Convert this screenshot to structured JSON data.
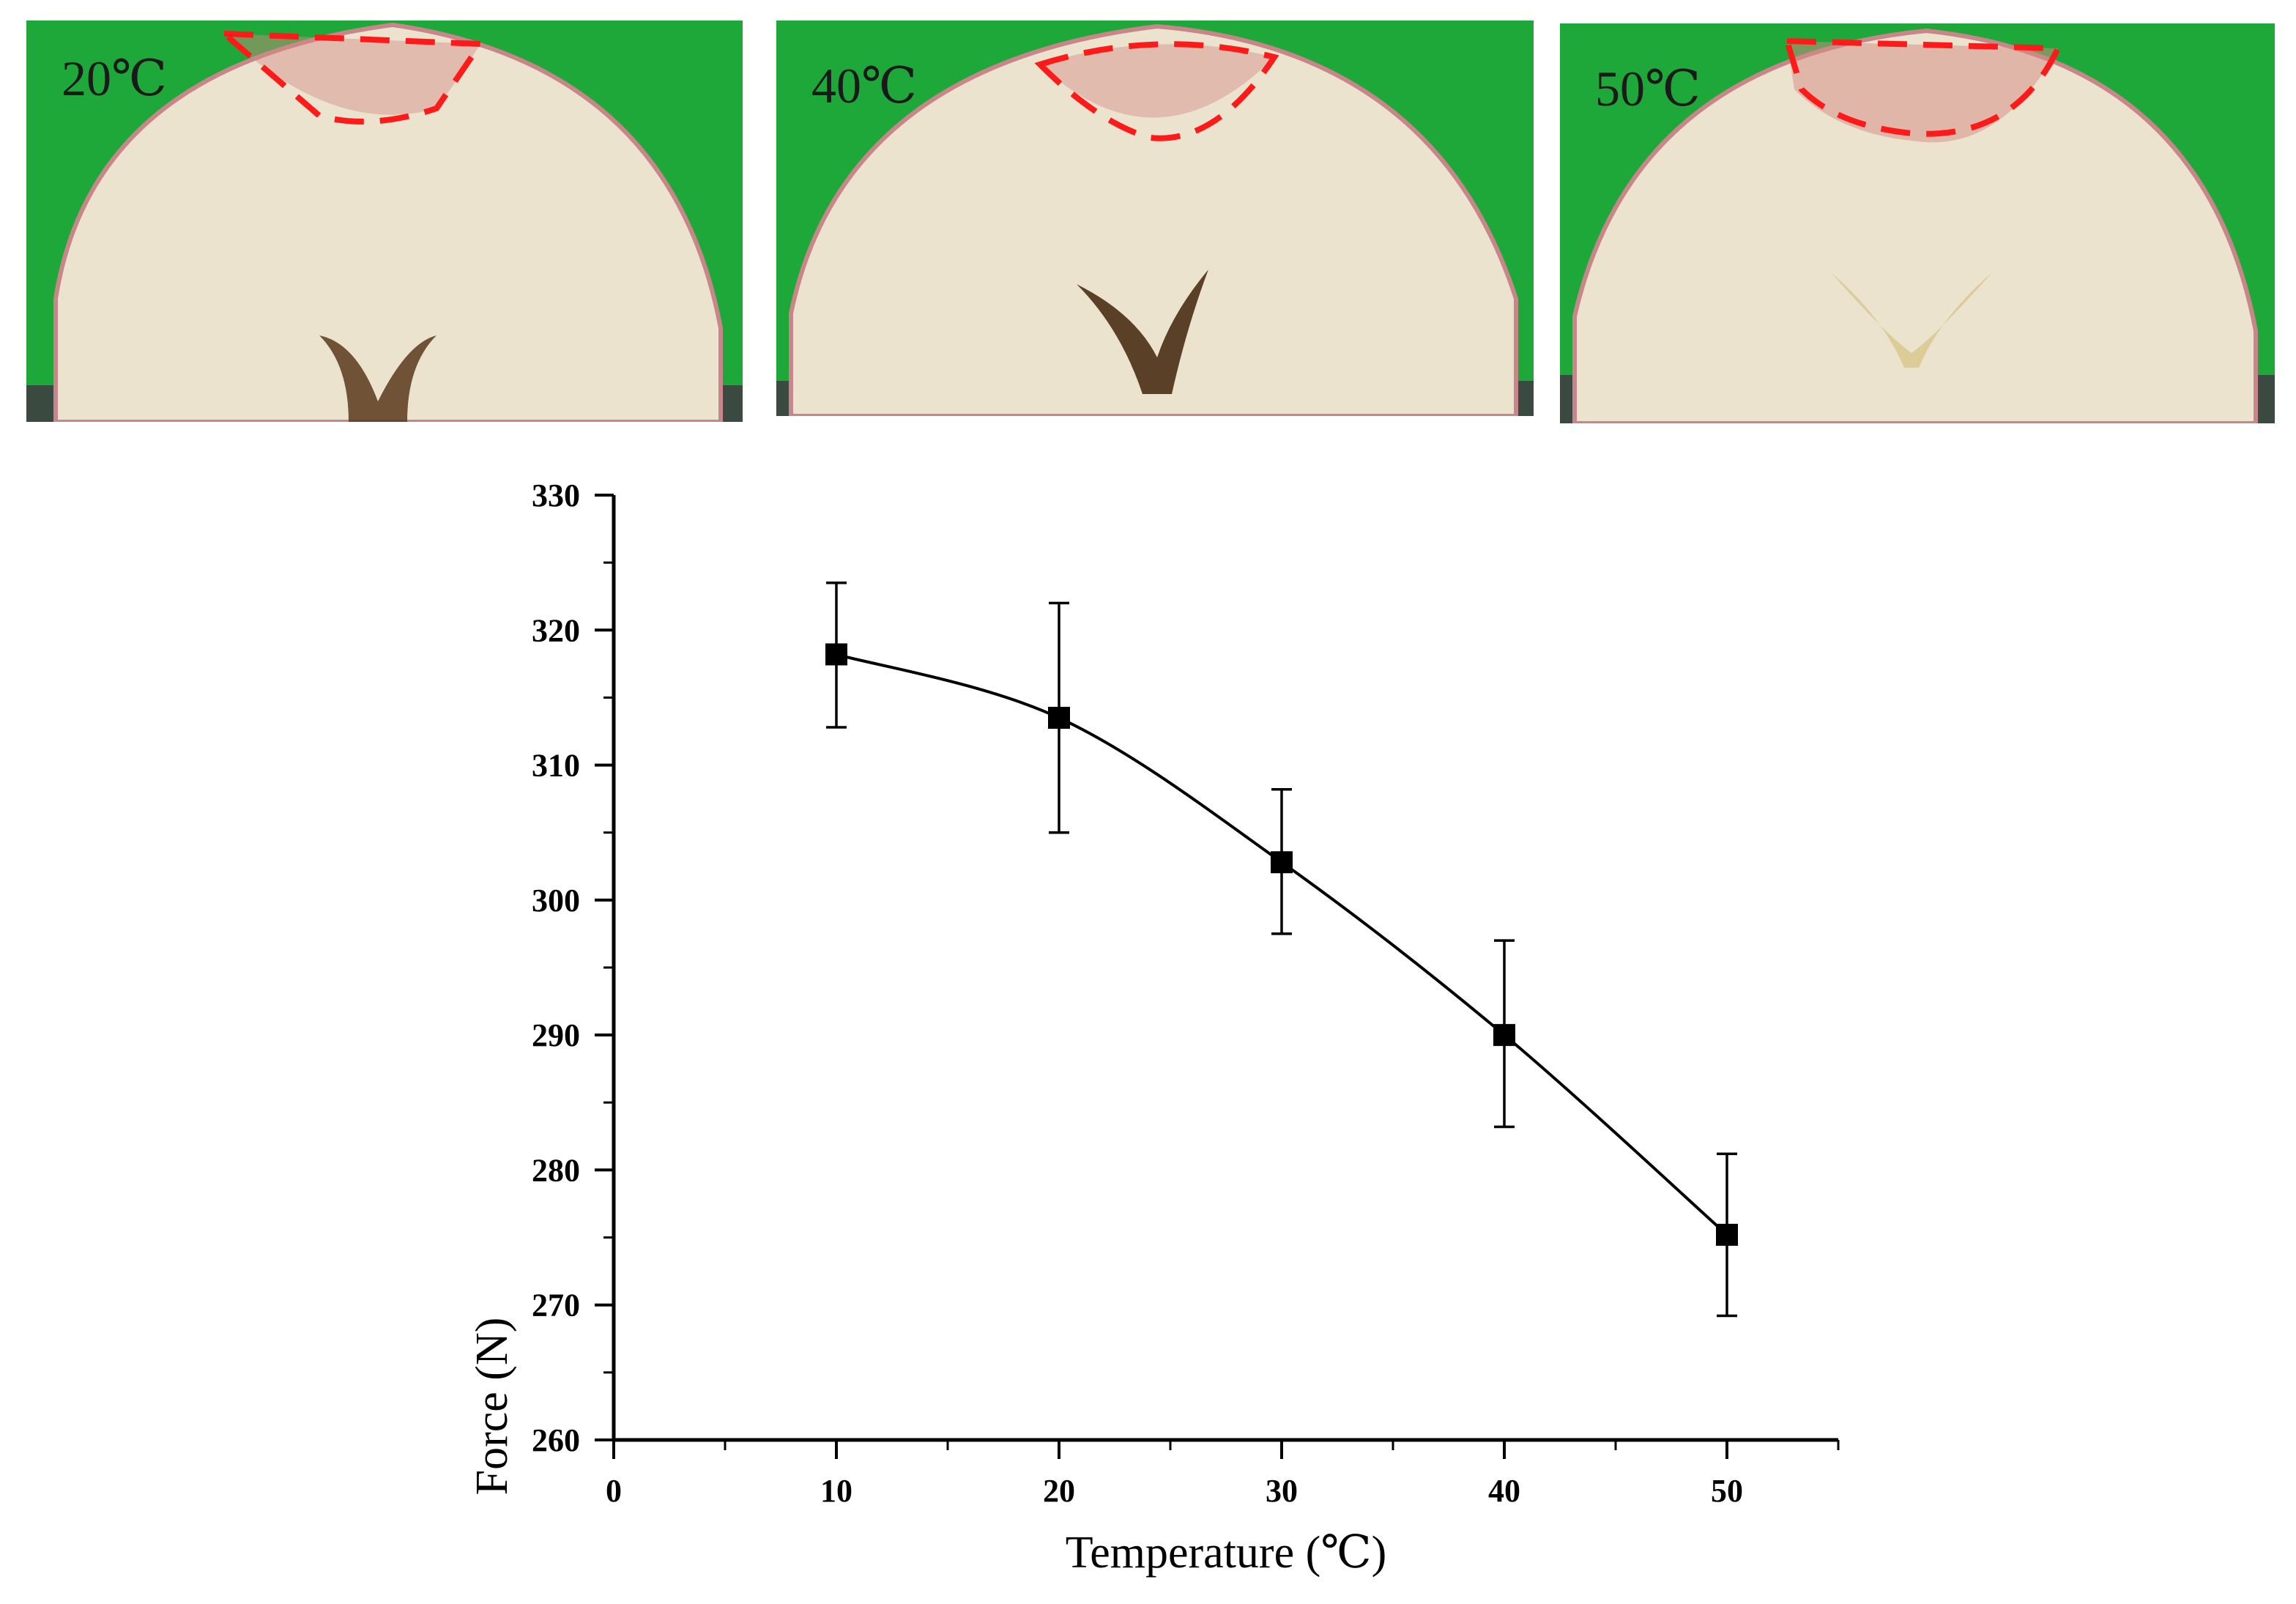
{
  "photos": [
    {
      "label": "20℃"
    },
    {
      "label": "40℃"
    },
    {
      "label": "50℃"
    }
  ],
  "colors": {
    "background_green": "#1fa83a",
    "apple_flesh": "#ece3cf",
    "apple_skin": "#c8868a",
    "damage_outline": "#ff1a1a",
    "table_surface": "#3b4a40"
  },
  "chart_data": {
    "type": "scatter",
    "xlabel": "Temperature (℃)",
    "ylabel": "Force (N)",
    "xlim": [
      0,
      55
    ],
    "ylim": [
      260,
      330
    ],
    "x_ticks": [
      "0",
      "10",
      "20",
      "30",
      "40",
      "50"
    ],
    "x_tick_values": [
      0,
      10,
      20,
      30,
      40,
      50
    ],
    "y_ticks": [
      "260",
      "270",
      "280",
      "290",
      "300",
      "310",
      "320",
      "330"
    ],
    "y_tick_values": [
      260,
      270,
      280,
      290,
      300,
      310,
      320,
      330
    ],
    "series": [
      {
        "name": "Force",
        "marker": "square",
        "x": [
          10,
          20,
          30,
          40,
          50
        ],
        "y": [
          318.2,
          313.5,
          302.8,
          290.0,
          275.2
        ],
        "error_upper": [
          323.5,
          322.0,
          308.2,
          297.0,
          281.2
        ],
        "error_lower": [
          312.8,
          305.0,
          297.5,
          283.2,
          269.2
        ],
        "fit": "smooth curve"
      }
    ]
  }
}
